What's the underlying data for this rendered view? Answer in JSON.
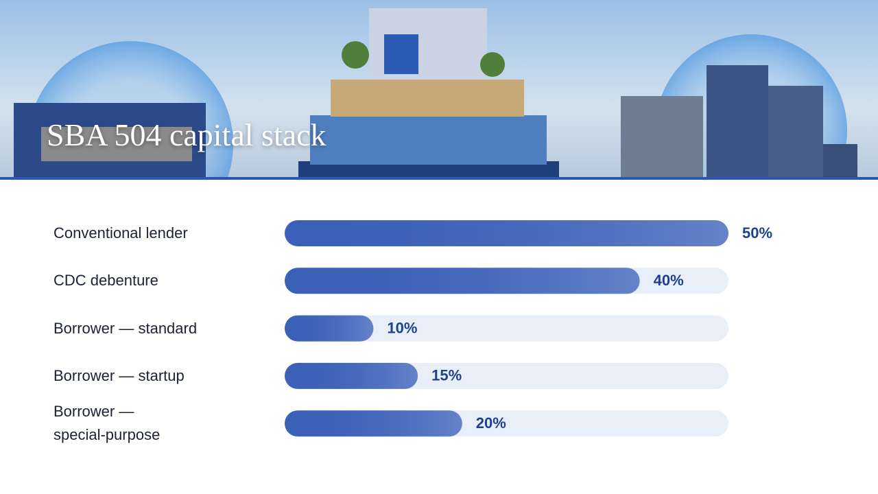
{
  "chart_data": {
    "type": "bar",
    "orientation": "horizontal",
    "title": "SBA 504 capital stack",
    "categories": [
      "Conventional lender",
      "CDC debenture",
      "Borrower — standard",
      "Borrower — startup",
      "Borrower — special-purpose"
    ],
    "values": [
      50,
      40,
      10,
      15,
      20
    ],
    "value_labels": [
      "50%",
      "40%",
      "10%",
      "15%",
      "20%"
    ],
    "xlim": [
      0,
      50
    ],
    "color": "#3a60b8"
  }
}
